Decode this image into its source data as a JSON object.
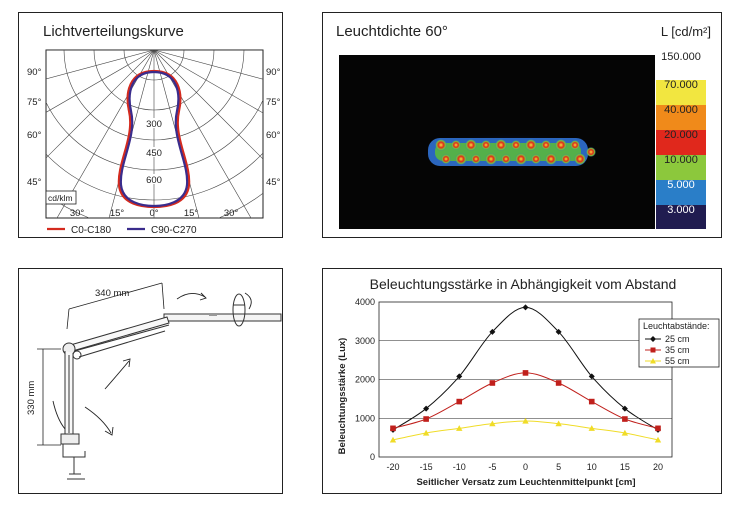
{
  "polar": {
    "title": "Lichtverteilungskurve",
    "unit": "cd/klm",
    "angle_labels": [
      "90°",
      "75°",
      "60°",
      "45°"
    ],
    "angle_labels_right": [
      "90°",
      "75°",
      "60°",
      "45°"
    ],
    "bottom_labels": [
      "30°",
      "15°",
      "0°",
      "15°",
      "30°"
    ],
    "radial_labels": [
      "300",
      "450",
      "600"
    ],
    "legend": [
      {
        "name": "C0-C180",
        "color": "#d42a1e"
      },
      {
        "name": "C90-C270",
        "color": "#3a2c8c"
      }
    ]
  },
  "heatmap": {
    "title": "Leuchtdichte 60°",
    "unit_label": "L [cd/m²]",
    "scale_labels": [
      "150.000",
      "70.000",
      "40.000",
      "20.000",
      "10.000",
      "5.000",
      "3.000"
    ],
    "scale_colors": [
      "#ffffff",
      "#f2e640",
      "#f08a1a",
      "#e0281c",
      "#8cc83c",
      "#2a7ec8",
      "#201c50"
    ]
  },
  "lamp": {
    "dim_horizontal": "340 mm",
    "dim_vertical": "330 mm"
  },
  "chart_data": {
    "type": "line",
    "title": "Beleuchtungsstärke in Abhängigkeit vom Abstand",
    "xlabel": "Seitlicher Versatz zum Leuchtenmittelpunkt [cm]",
    "ylabel": "Beleuchtungsstärke (Lux)",
    "x": [
      -20,
      -15,
      -10,
      -5,
      0,
      5,
      10,
      15,
      20
    ],
    "xlim": [
      -20,
      20
    ],
    "ylim": [
      0,
      4000
    ],
    "xticks": [
      "-20",
      "-15",
      "-10",
      "-5",
      "0",
      "5",
      "10",
      "15",
      "20"
    ],
    "yticks": [
      "0",
      "1000",
      "2000",
      "3000",
      "4000"
    ],
    "grid": "horizontal",
    "legend_title": "Leuchtabstände:",
    "legend_position": "right",
    "series": [
      {
        "name": "25 cm",
        "color": "#111111",
        "marker": "diamond",
        "values": [
          700,
          1250,
          2080,
          3230,
          3860,
          3230,
          2080,
          1250,
          700
        ]
      },
      {
        "name": "35 cm",
        "color": "#c0201c",
        "marker": "square",
        "values": [
          740,
          980,
          1430,
          1910,
          2170,
          1910,
          1430,
          980,
          740
        ]
      },
      {
        "name": "55 cm",
        "color": "#f0dc28",
        "marker": "triangle",
        "values": [
          440,
          620,
          740,
          860,
          930,
          860,
          740,
          620,
          440
        ]
      }
    ]
  }
}
